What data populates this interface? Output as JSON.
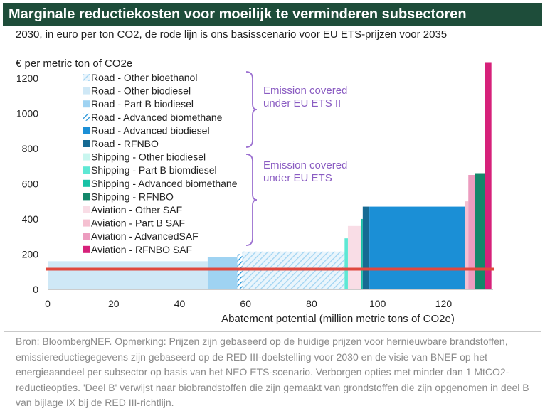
{
  "title": "Marginale reductiekosten voor moeilijk te verminderen subsectoren",
  "subtitle": "2030, in euro per ton CO2, de rode lijn is ons basisscenario voor EU ETS-prijzen voor 2035",
  "chart_data": {
    "type": "bar",
    "ylabel": "€ per metric ton of CO2e",
    "xlabel": "Abatement potential (million metric tons of CO2e)",
    "xlim": [
      0,
      135
    ],
    "ylim": [
      0,
      1300
    ],
    "xticks": [
      "0",
      "20",
      "40",
      "60",
      "80",
      "100",
      "120"
    ],
    "yticks": [
      "0",
      "200",
      "400",
      "600",
      "800",
      "1000",
      "1200"
    ],
    "reference_line": 115,
    "legend": [
      {
        "label": "Road - Other bioethanol",
        "color": "#cfe8f6",
        "hatch": true
      },
      {
        "label": "Road - Other biodiesel",
        "color": "#cfe8f6",
        "hatch": false
      },
      {
        "label": "Road - Part B biodiesel",
        "color": "#9fd3f2",
        "hatch": false
      },
      {
        "label": "Road - Advanced biomethane",
        "color": "#3a9fdc",
        "hatch": true
      },
      {
        "label": "Road - Advanced biodiesel",
        "color": "#1b8fd6",
        "hatch": false
      },
      {
        "label": "Road - RFNBO",
        "color": "#166a93",
        "hatch": false
      },
      {
        "label": "Shipping - Other biodiesel",
        "color": "#c8f6ef",
        "hatch": false
      },
      {
        "label": "Shipping - Part B biomdiesel",
        "color": "#5ee8d4",
        "hatch": false
      },
      {
        "label": "Shipping - Advanced biomethane",
        "color": "#17c2a6",
        "hatch": false
      },
      {
        "label": "Shipping - RFNBO",
        "color": "#13876a",
        "hatch": false
      },
      {
        "label": "Aviation - Other SAF",
        "color": "#f9dde6",
        "hatch": false
      },
      {
        "label": "Aviation - Part B SAF",
        "color": "#f5c0d1",
        "hatch": false
      },
      {
        "label": "Aviation - AdvancedSAF",
        "color": "#ec9cbf",
        "hatch": false
      },
      {
        "label": "Aviation - RFNBO SAF",
        "color": "#d6217a",
        "hatch": false
      }
    ],
    "bars": [
      {
        "series": "Road - Other biodiesel",
        "x0": 0,
        "x1": 48.5,
        "value": 160
      },
      {
        "series": "Road - Part B biodiesel",
        "x0": 48.5,
        "x1": 57.5,
        "value": 185
      },
      {
        "series": "Road - Advanced biomethane",
        "x0": 57.5,
        "x1": 59,
        "value": 200
      },
      {
        "series": "Road - Other bioethanol",
        "x0": 59,
        "x1": 90,
        "value": 215
      },
      {
        "series": "Shipping - Part B biomdiesel",
        "x0": 90,
        "x1": 91,
        "value": 290
      },
      {
        "series": "Aviation - Other SAF",
        "x0": 91,
        "x1": 95,
        "value": 360
      },
      {
        "series": "Shipping - Advanced biomethane",
        "x0": 95,
        "x1": 95.5,
        "value": 400
      },
      {
        "series": "Road - RFNBO",
        "x0": 95.5,
        "x1": 97.5,
        "value": 470
      },
      {
        "series": "Road - Advanced biodiesel",
        "x0": 97.5,
        "x1": 126.5,
        "value": 470
      },
      {
        "series": "Aviation - Part B SAF",
        "x0": 126.5,
        "x1": 127.5,
        "value": 500
      },
      {
        "series": "Aviation - AdvancedSAF",
        "x0": 127.5,
        "x1": 129.5,
        "value": 650
      },
      {
        "series": "Shipping - RFNBO",
        "x0": 129.5,
        "x1": 132.5,
        "value": 660
      },
      {
        "series": "Aviation - RFNBO SAF",
        "x0": 132.5,
        "x1": 134.5,
        "value": 1290
      }
    ],
    "annotations": [
      {
        "text": "Emission covered under EU ETS II",
        "lines": [
          "Emission covered",
          "under EU ETS II"
        ],
        "color": "#8a5cc2"
      },
      {
        "text": "Emission covered under EU ETS",
        "lines": [
          "Emission covered",
          "under EU ETS"
        ],
        "color": "#8a5cc2"
      }
    ],
    "colors": {
      "reference_line": "#e0483e",
      "brace": "#9b6fd0",
      "title_bar": "#1e4d3a"
    }
  },
  "source": {
    "prefix": "Bron: BloombergNEF. ",
    "note_label": "Opmerking:",
    "text": " Prijzen zijn gebaseerd op de huidige prijzen voor hernieuwbare brandstoffen, emissiereductiegegevens zijn gebaseerd op de RED III-doelstelling voor 2030 en de visie van BNEF op het energieaandeel per subsector op basis van het NEO ETS-scenario. Verborgen opties met minder dan 1 MtCO2-reductieopties. 'Deel B' verwijst naar biobrandstoffen die zijn gemaakt van grondstoffen die zijn opgenomen in deel B van bijlage IX bij de RED III-richtlijn."
  }
}
